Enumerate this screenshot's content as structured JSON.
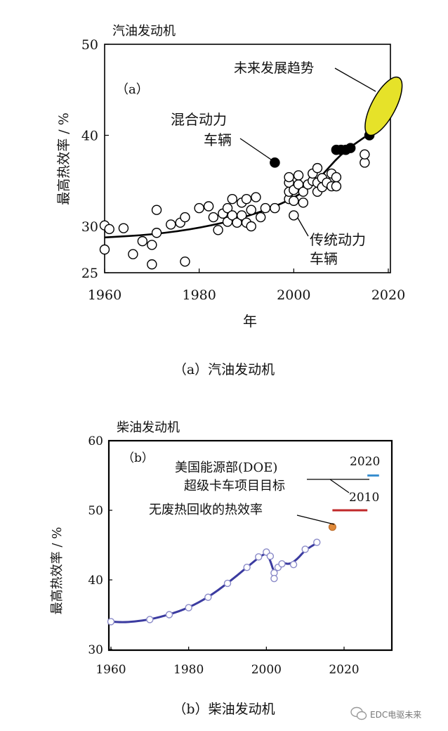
{
  "chart_data": [
    {
      "type": "scatter",
      "title": "汽油发动机",
      "panel_label": "（a）",
      "caption": "（a）汽油发动机",
      "xlabel": "年",
      "ylabel": "最高热效率 / %",
      "xlim": [
        1960,
        2022
      ],
      "ylim": [
        25,
        50
      ],
      "xticks": [
        1960,
        1980,
        2000,
        2020
      ],
      "yticks": [
        25,
        30,
        40,
        50
      ],
      "grid": false,
      "series": [
        {
          "name": "传统动力车辆",
          "marker": "open-circle",
          "points": [
            [
              1960,
              30.1
            ],
            [
              1961,
              29.7
            ],
            [
              1960,
              27.5
            ],
            [
              1964,
              29.8
            ],
            [
              1966,
              27.0
            ],
            [
              1968,
              28.4
            ],
            [
              1970,
              28.0
            ],
            [
              1970,
              25.9
            ],
            [
              1971,
              29.3
            ],
            [
              1971,
              31.8
            ],
            [
              1974,
              30.2
            ],
            [
              1976,
              30.4
            ],
            [
              1977,
              31.0
            ],
            [
              1977,
              26.2
            ],
            [
              1980,
              32.0
            ],
            [
              1982,
              32.2
            ],
            [
              1983,
              31.0
            ],
            [
              1984,
              29.6
            ],
            [
              1985,
              31.4
            ],
            [
              1986,
              30.5
            ],
            [
              1986,
              32.0
            ],
            [
              1987,
              33.0
            ],
            [
              1987,
              31.2
            ],
            [
              1988,
              30.4
            ],
            [
              1989,
              32.6
            ],
            [
              1989,
              31.2
            ],
            [
              1990,
              33.0
            ],
            [
              1990,
              30.4
            ],
            [
              1991,
              31.8
            ],
            [
              1991,
              30.0
            ],
            [
              1992,
              33.2
            ],
            [
              1993,
              31.0
            ],
            [
              1994,
              32.0
            ],
            [
              1996,
              32.0
            ],
            [
              1999,
              33.0
            ],
            [
              1999,
              33.8
            ],
            [
              1999,
              34.8
            ],
            [
              1999,
              35.4
            ],
            [
              2000,
              32.8
            ],
            [
              2000,
              31.2
            ],
            [
              2000,
              34.0
            ],
            [
              2001,
              34.6
            ],
            [
              2001,
              35.6
            ],
            [
              2002,
              32.6
            ],
            [
              2002,
              33.8
            ],
            [
              2003,
              34.6
            ],
            [
              2004,
              35.0
            ],
            [
              2004,
              35.8
            ],
            [
              2005,
              33.8
            ],
            [
              2005,
              34.8
            ],
            [
              2005,
              36.4
            ],
            [
              2006,
              35.3
            ],
            [
              2006,
              34.3
            ],
            [
              2007,
              34.8
            ],
            [
              2008,
              35.8
            ],
            [
              2008,
              34.4
            ],
            [
              2009,
              35.4
            ],
            [
              2009,
              34.4
            ],
            [
              2015,
              37.0
            ],
            [
              2015,
              37.9
            ]
          ]
        },
        {
          "name": "混合动力车辆",
          "marker": "filled-circle",
          "points": [
            [
              1996,
              37.0
            ],
            [
              2009,
              38.4
            ],
            [
              2010,
              38.4
            ],
            [
              2011,
              38.4
            ],
            [
              2012,
              38.6
            ],
            [
              2016,
              40.0
            ]
          ]
        },
        {
          "name": "trend",
          "marker": "line",
          "points": [
            [
              1960,
              28.8
            ],
            [
              1970,
              29.1
            ],
            [
              1980,
              29.8
            ],
            [
              1990,
              31.0
            ],
            [
              2000,
              33.0
            ],
            [
              2005,
              35.0
            ],
            [
              2010,
              38.0
            ],
            [
              2015,
              39.8
            ]
          ]
        }
      ],
      "annotations": [
        {
          "text_lines": [
            "未来发展趋势"
          ],
          "target": [
            2019,
            43.0
          ]
        },
        {
          "text_lines": [
            "混合动力",
            "车辆"
          ],
          "target": [
            1996,
            37.0
          ]
        },
        {
          "text_lines": [
            "传统动力",
            "车辆"
          ],
          "target": [
            2001,
            31.5
          ]
        }
      ],
      "future_region": {
        "center": [
          2019,
          43.2
        ],
        "color": "#E6E229"
      }
    },
    {
      "type": "line",
      "title": "柴油发动机",
      "panel_label": "（b）",
      "caption": "（b）柴油发动机",
      "xlabel": "",
      "ylabel": "最高热效率 / %",
      "xlim": [
        1958,
        2029
      ],
      "ylim": [
        30,
        60
      ],
      "xticks": [
        1960,
        1980,
        2000,
        2020
      ],
      "yticks": [
        30,
        40,
        50,
        60
      ],
      "grid": false,
      "series": [
        {
          "name": "historical",
          "color": "#3B3BA0",
          "points": [
            [
              1960,
              34.0
            ],
            [
              1963,
              33.9
            ],
            [
              1966,
              34.0
            ],
            [
              1970,
              34.3
            ],
            [
              1975,
              35.0
            ],
            [
              1980,
              36.0
            ],
            [
              1985,
              37.5
            ],
            [
              1990,
              39.5
            ],
            [
              1995,
              41.8
            ],
            [
              1998,
              43.2
            ],
            [
              2000,
              43.9
            ],
            [
              2001,
              42.8
            ],
            [
              2002,
              41.0
            ],
            [
              2003,
              41.5
            ],
            [
              2004,
              42.5
            ],
            [
              2006,
              42.2
            ],
            [
              2008,
              43.0
            ],
            [
              2010,
              44.3
            ],
            [
              2013,
              45.3
            ]
          ],
          "markers": [
            [
              1960,
              34.0
            ],
            [
              1970,
              34.3
            ],
            [
              1975,
              35.0
            ],
            [
              1980,
              36.0
            ],
            [
              1985,
              37.5
            ],
            [
              1990,
              39.5
            ],
            [
              1995,
              41.8
            ],
            [
              1998,
              43.3
            ],
            [
              2000,
              44.0
            ],
            [
              2001,
              43.4
            ],
            [
              2002,
              41.0
            ],
            [
              2002,
              40.2
            ],
            [
              2003,
              41.8
            ],
            [
              2004,
              42.3
            ],
            [
              2007,
              42.2
            ],
            [
              2010,
              44.4
            ],
            [
              2013,
              45.4
            ]
          ]
        }
      ],
      "waste_heat_point": {
        "x": 2017,
        "y": 47.6,
        "color": "#E08A3A"
      },
      "targets": [
        {
          "label": "2010",
          "y": 50,
          "x_range": [
            2017,
            2026
          ],
          "color": "#C0282A"
        },
        {
          "label": "2020",
          "y": 55,
          "x_range": [
            2026,
            2029
          ],
          "color": "#3A8FD0"
        }
      ],
      "annotations": [
        {
          "text_lines": [
            "美国能源部(DOE)",
            "超级卡车项目目标"
          ]
        },
        {
          "text_lines": [
            "无废热回收的热效率"
          ],
          "target": [
            2017,
            47.6
          ]
        }
      ]
    }
  ],
  "watermark": {
    "text": "EDC电驱未来",
    "icon": "wechat-icon"
  }
}
